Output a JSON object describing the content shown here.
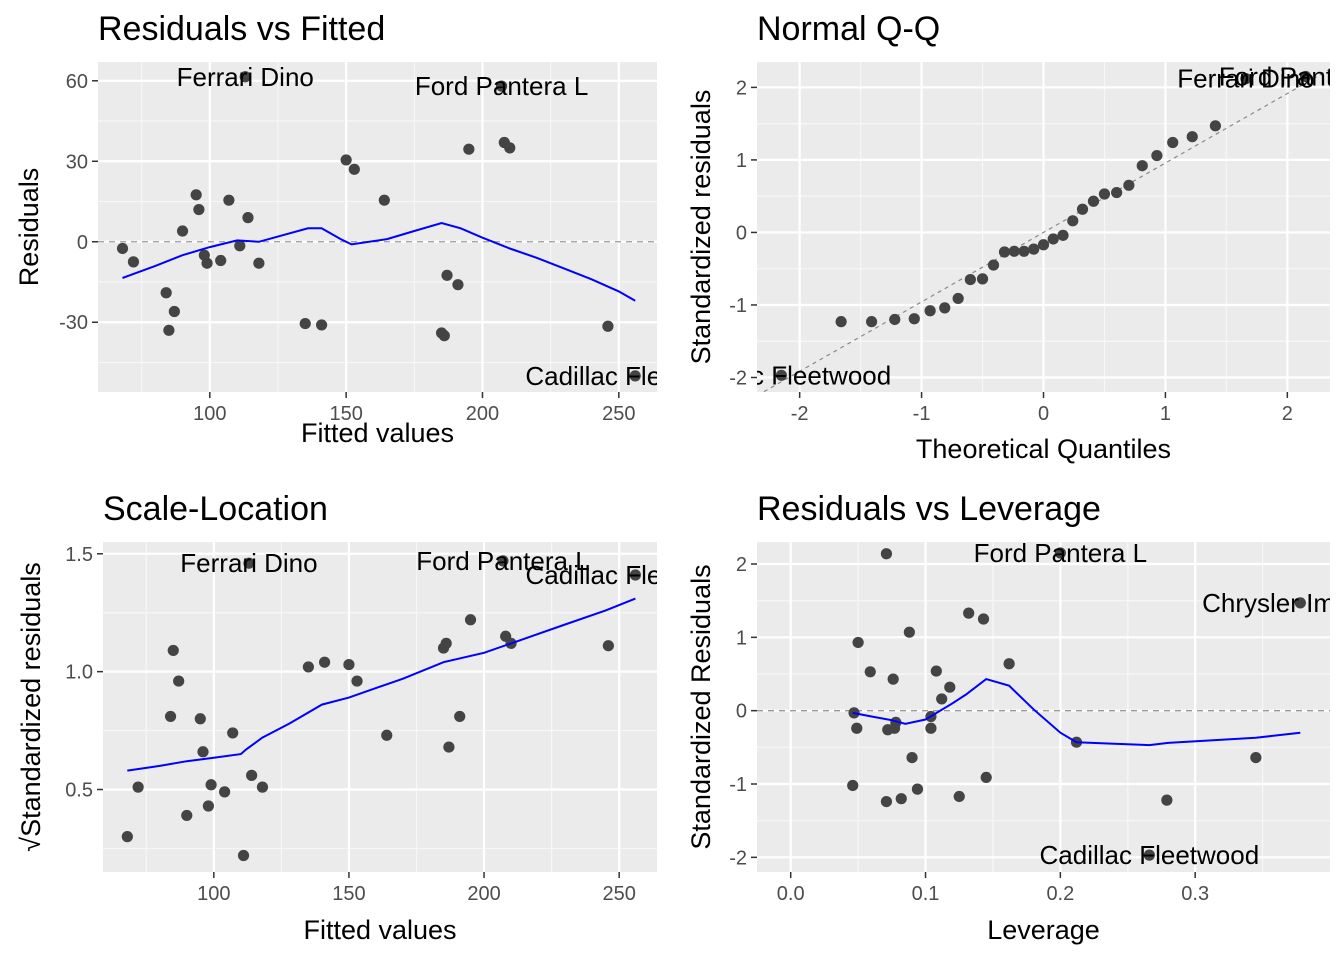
{
  "chart_data": [
    {
      "type": "scatter",
      "title": "Residuals vs Fitted",
      "xlabel": "Fitted values",
      "ylabel": "Residuals",
      "xlim": [
        59,
        264
      ],
      "ylim": [
        -56,
        67
      ],
      "xticks": [
        100,
        150,
        200,
        250
      ],
      "xtick_labels": [
        "100",
        "150",
        "200",
        "250"
      ],
      "yticks": [
        -30,
        0,
        30,
        60
      ],
      "ytick_labels": [
        "-30",
        "0",
        "30",
        "60"
      ],
      "refline": {
        "type": "h",
        "y": 0
      },
      "points": [
        [
          68,
          -2.5
        ],
        [
          72,
          -7.5
        ],
        [
          84,
          -19
        ],
        [
          85,
          -33
        ],
        [
          87,
          -26
        ],
        [
          90,
          4
        ],
        [
          95,
          17.5
        ],
        [
          96,
          12
        ],
        [
          98,
          -5
        ],
        [
          99,
          -8
        ],
        [
          104,
          -7
        ],
        [
          107,
          15.5
        ],
        [
          111,
          -1.5
        ],
        [
          113,
          61.5
        ],
        [
          114,
          9
        ],
        [
          118,
          -8
        ],
        [
          135,
          -30.5
        ],
        [
          141,
          -31
        ],
        [
          150,
          30.5
        ],
        [
          153,
          27
        ],
        [
          164,
          15.5
        ],
        [
          185,
          -34
        ],
        [
          186,
          -35
        ],
        [
          187,
          -12.5
        ],
        [
          191,
          -16
        ],
        [
          195,
          34.5
        ],
        [
          207,
          58
        ],
        [
          208,
          37
        ],
        [
          210,
          35
        ],
        [
          246,
          -31.5
        ],
        [
          256,
          -50
        ]
      ],
      "smoother": [
        [
          68,
          -13.5
        ],
        [
          80,
          -9
        ],
        [
          90,
          -5
        ],
        [
          100,
          -2
        ],
        [
          110,
          0.5
        ],
        [
          118,
          0
        ],
        [
          136,
          5
        ],
        [
          141,
          5
        ],
        [
          148,
          1
        ],
        [
          152,
          -1
        ],
        [
          165,
          1
        ],
        [
          175,
          4
        ],
        [
          185,
          7
        ],
        [
          192,
          5
        ],
        [
          200,
          1.5
        ],
        [
          210,
          -2.5
        ],
        [
          220,
          -6
        ],
        [
          230,
          -10
        ],
        [
          240,
          -14
        ],
        [
          250,
          -18.5
        ],
        [
          256,
          -22
        ]
      ],
      "annotations": [
        {
          "text": "Ferrari Dino",
          "x": 113,
          "y": 61.5
        },
        {
          "text": "Ford Pantera L",
          "x": 207,
          "y": 58
        },
        {
          "text": "Cadillac Fleetwood",
          "x": 256,
          "y": -50
        }
      ]
    },
    {
      "type": "scatter",
      "title": "Normal Q-Q",
      "xlabel": "Theoretical Quantiles",
      "ylabel": "Standardized residuals",
      "xlim": [
        -2.35,
        2.35
      ],
      "ylim": [
        -2.2,
        2.35
      ],
      "xticks": [
        -2,
        -1,
        0,
        1,
        2
      ],
      "xtick_labels": [
        "-2",
        "-1",
        "0",
        "1",
        "2"
      ],
      "yticks": [
        -2,
        -1,
        0,
        1,
        2
      ],
      "ytick_labels": [
        "-2",
        "-1",
        "0",
        "1",
        "2"
      ],
      "refline": {
        "type": "line",
        "from": [
          -2.35,
          -2.25
        ],
        "to": [
          2.35,
          2.25
        ]
      },
      "points": [
        [
          -2.15,
          -1.97
        ],
        [
          -1.66,
          -1.23
        ],
        [
          -1.41,
          -1.23
        ],
        [
          -1.22,
          -1.2
        ],
        [
          -1.06,
          -1.19
        ],
        [
          -0.93,
          -1.08
        ],
        [
          -0.81,
          -1.04
        ],
        [
          -0.7,
          -0.91
        ],
        [
          -0.6,
          -0.65
        ],
        [
          -0.5,
          -0.64
        ],
        [
          -0.41,
          -0.45
        ],
        [
          -0.32,
          -0.27
        ],
        [
          -0.24,
          -0.26
        ],
        [
          -0.16,
          -0.26
        ],
        [
          -0.08,
          -0.23
        ],
        [
          0.0,
          -0.17
        ],
        [
          0.08,
          -0.09
        ],
        [
          0.16,
          -0.04
        ],
        [
          0.24,
          0.16
        ],
        [
          0.32,
          0.32
        ],
        [
          0.41,
          0.43
        ],
        [
          0.5,
          0.53
        ],
        [
          0.6,
          0.55
        ],
        [
          0.7,
          0.65
        ],
        [
          0.81,
          0.92
        ],
        [
          0.93,
          1.06
        ],
        [
          1.06,
          1.24
        ],
        [
          1.22,
          1.32
        ],
        [
          1.41,
          1.47
        ],
        [
          1.66,
          2.12
        ],
        [
          2.15,
          2.15
        ]
      ],
      "annotations": [
        {
          "text": "Ford Pantera L",
          "x": 2.15,
          "y": 2.15
        },
        {
          "text": "Ferrari Dino",
          "x": 1.66,
          "y": 2.12
        },
        {
          "text": "Cadillac Fleetwood",
          "x": -2.15,
          "y": -1.97
        }
      ]
    },
    {
      "type": "scatter",
      "title": "Scale-Location",
      "xlabel": "Fitted values",
      "ylabel": "√Standardized residuals",
      "xlim": [
        59,
        264
      ],
      "ylim": [
        0.15,
        1.55
      ],
      "xticks": [
        100,
        150,
        200,
        250
      ],
      "xtick_labels": [
        "100",
        "150",
        "200",
        "250"
      ],
      "yticks": [
        0.5,
        1.0,
        1.5
      ],
      "ytick_labels": [
        "0.5",
        "1.0",
        "1.5"
      ],
      "points": [
        [
          68,
          0.3
        ],
        [
          72,
          0.51
        ],
        [
          84,
          0.81
        ],
        [
          85,
          1.09
        ],
        [
          87,
          0.96
        ],
        [
          90,
          0.39
        ],
        [
          95,
          0.8
        ],
        [
          96,
          0.66
        ],
        [
          98,
          0.43
        ],
        [
          99,
          0.52
        ],
        [
          104,
          0.49
        ],
        [
          107,
          0.74
        ],
        [
          111,
          0.22
        ],
        [
          113,
          1.46
        ],
        [
          114,
          0.56
        ],
        [
          118,
          0.51
        ],
        [
          135,
          1.02
        ],
        [
          141,
          1.04
        ],
        [
          150,
          1.03
        ],
        [
          153,
          0.96
        ],
        [
          164,
          0.73
        ],
        [
          185,
          1.1
        ],
        [
          186,
          1.12
        ],
        [
          187,
          0.68
        ],
        [
          191,
          0.81
        ],
        [
          195,
          1.22
        ],
        [
          207,
          1.47
        ],
        [
          208,
          1.15
        ],
        [
          210,
          1.12
        ],
        [
          246,
          1.11
        ],
        [
          256,
          1.41
        ]
      ],
      "smoother": [
        [
          68,
          0.58
        ],
        [
          80,
          0.6
        ],
        [
          90,
          0.62
        ],
        [
          100,
          0.635
        ],
        [
          110,
          0.65
        ],
        [
          112,
          0.67
        ],
        [
          118,
          0.72
        ],
        [
          128,
          0.78
        ],
        [
          140,
          0.86
        ],
        [
          150,
          0.89
        ],
        [
          160,
          0.93
        ],
        [
          170,
          0.97
        ],
        [
          185,
          1.04
        ],
        [
          200,
          1.08
        ],
        [
          210,
          1.12
        ],
        [
          230,
          1.2
        ],
        [
          245,
          1.26
        ],
        [
          256,
          1.31
        ]
      ],
      "annotations": [
        {
          "text": "Ferrari Dino",
          "x": 113,
          "y": 1.46
        },
        {
          "text": "Ford Pantera L",
          "x": 207,
          "y": 1.47
        },
        {
          "text": "Cadillac Fleetwood",
          "x": 256,
          "y": 1.41
        }
      ]
    },
    {
      "type": "scatter",
      "title": "Residuals vs Leverage",
      "xlabel": "Leverage",
      "ylabel": "Standardized Residuals",
      "xlim": [
        -0.025,
        0.4
      ],
      "ylim": [
        -2.2,
        2.3
      ],
      "xticks": [
        0.0,
        0.1,
        0.2,
        0.3
      ],
      "xtick_labels": [
        "0.0",
        "0.1",
        "0.2",
        "0.3"
      ],
      "yticks": [
        -2,
        -1,
        0,
        1,
        2
      ],
      "ytick_labels": [
        "-2",
        "-1",
        "0",
        "1",
        "2"
      ],
      "refline": {
        "type": "h",
        "y": 0
      },
      "points": [
        [
          0.046,
          -1.02
        ],
        [
          0.047,
          -0.03
        ],
        [
          0.049,
          -0.24
        ],
        [
          0.05,
          0.93
        ],
        [
          0.059,
          0.53
        ],
        [
          0.071,
          2.14
        ],
        [
          0.071,
          -1.24
        ],
        [
          0.072,
          -0.26
        ],
        [
          0.076,
          0.43
        ],
        [
          0.077,
          -0.24
        ],
        [
          0.078,
          -0.16
        ],
        [
          0.082,
          -1.2
        ],
        [
          0.088,
          1.07
        ],
        [
          0.09,
          -0.64
        ],
        [
          0.094,
          -1.07
        ],
        [
          0.104,
          -0.08
        ],
        [
          0.104,
          -0.24
        ],
        [
          0.108,
          0.54
        ],
        [
          0.112,
          0.16
        ],
        [
          0.118,
          0.32
        ],
        [
          0.125,
          -1.17
        ],
        [
          0.132,
          1.33
        ],
        [
          0.143,
          1.25
        ],
        [
          0.145,
          -0.91
        ],
        [
          0.162,
          0.64
        ],
        [
          0.2,
          2.15
        ],
        [
          0.212,
          -0.43
        ],
        [
          0.266,
          -1.97
        ],
        [
          0.279,
          -1.22
        ],
        [
          0.345,
          -0.64
        ],
        [
          0.378,
          1.47
        ]
      ],
      "smoother": [
        [
          0.046,
          -0.03
        ],
        [
          0.06,
          -0.08
        ],
        [
          0.075,
          -0.13
        ],
        [
          0.085,
          -0.18
        ],
        [
          0.1,
          -0.12
        ],
        [
          0.12,
          0.1
        ],
        [
          0.13,
          0.22
        ],
        [
          0.145,
          0.43
        ],
        [
          0.162,
          0.34
        ],
        [
          0.18,
          0.02
        ],
        [
          0.2,
          -0.3
        ],
        [
          0.212,
          -0.43
        ],
        [
          0.24,
          -0.45
        ],
        [
          0.266,
          -0.47
        ],
        [
          0.28,
          -0.44
        ],
        [
          0.345,
          -0.37
        ],
        [
          0.378,
          -0.3
        ]
      ],
      "annotations": [
        {
          "text": "Ford Pantera L",
          "x": 0.2,
          "y": 2.15
        },
        {
          "text": "Chrysler Imperial",
          "x": 0.378,
          "y": 1.47
        },
        {
          "text": "Cadillac Fleetwood",
          "x": 0.266,
          "y": -1.97
        }
      ]
    }
  ]
}
